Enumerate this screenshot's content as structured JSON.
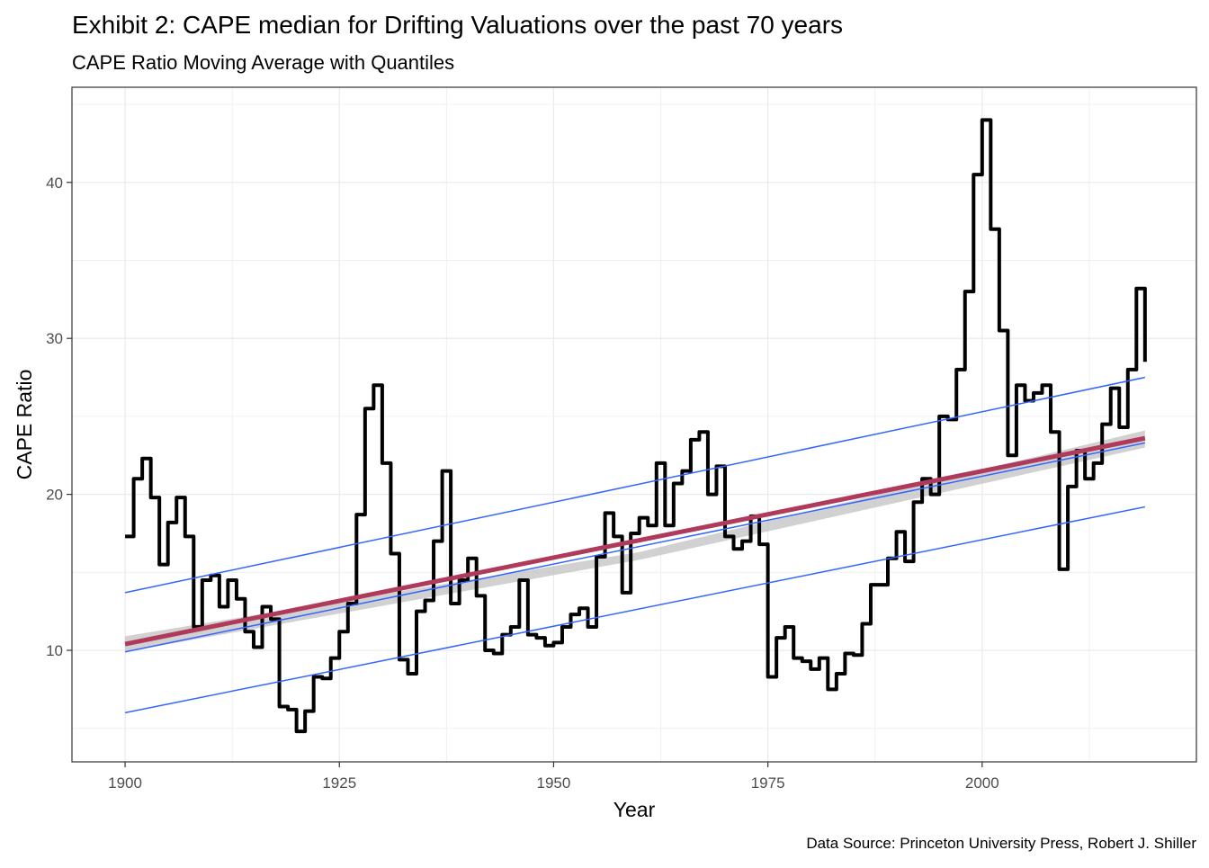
{
  "chart_data": {
    "type": "line",
    "title": "Exhibit 2:  CAPE median for Drifting Valuations over the past 70 years",
    "subtitle": "CAPE Ratio Moving Average with Quantiles",
    "x_label": "Year",
    "y_label": "CAPE Ratio",
    "caption": "Data Source: Princeton University Press, Robert J. Shiller",
    "xlim": [
      1893.8,
      2025
    ],
    "ylim": [
      2.85,
      46.1
    ],
    "xticks": [
      1900,
      1925,
      1950,
      1975,
      2000
    ],
    "yticks": [
      10,
      20,
      30,
      40
    ],
    "grid": true,
    "minor_grid": true,
    "band": {
      "color": "#bdbdbd",
      "x": [
        1900,
        1960,
        2019
      ],
      "lower": [
        9.9,
        15.8,
        23.0
      ],
      "upper": [
        10.9,
        16.3,
        24.1
      ]
    },
    "series": [
      {
        "color": "#000000",
        "step": true,
        "width": 4,
        "x": [
          1900,
          1901,
          1902,
          1903,
          1904,
          1905,
          1906,
          1907,
          1908,
          1909,
          1910,
          1911,
          1912,
          1913,
          1914,
          1915,
          1916,
          1917,
          1918,
          1919,
          1920,
          1921,
          1922,
          1923,
          1924,
          1925,
          1926,
          1927,
          1928,
          1929,
          1930,
          1931,
          1932,
          1933,
          1934,
          1935,
          1936,
          1937,
          1938,
          1939,
          1940,
          1941,
          1942,
          1943,
          1944,
          1945,
          1946,
          1947,
          1948,
          1949,
          1950,
          1951,
          1952,
          1953,
          1954,
          1955,
          1956,
          1957,
          1958,
          1959,
          1960,
          1961,
          1962,
          1963,
          1964,
          1965,
          1966,
          1967,
          1968,
          1969,
          1970,
          1971,
          1972,
          1973,
          1974,
          1975,
          1976,
          1977,
          1978,
          1979,
          1980,
          1981,
          1982,
          1983,
          1984,
          1985,
          1986,
          1987,
          1988,
          1989,
          1990,
          1991,
          1992,
          1993,
          1994,
          1995,
          1996,
          1997,
          1998,
          1999,
          2000,
          2001,
          2002,
          2003,
          2004,
          2005,
          2006,
          2007,
          2008,
          2009,
          2010,
          2011,
          2012,
          2013,
          2014,
          2015,
          2016,
          2017,
          2018,
          2019
        ],
        "values": [
          17.3,
          21,
          22.3,
          19.8,
          15.5,
          18.2,
          19.8,
          17.3,
          11.5,
          14.5,
          14.8,
          12.8,
          14.5,
          13.3,
          11.2,
          10.2,
          12.8,
          12,
          6.4,
          6.2,
          4.8,
          6.1,
          8.3,
          8.2,
          9.5,
          11.2,
          13,
          18.7,
          25.5,
          27,
          22,
          16.2,
          9.4,
          8.5,
          12.5,
          13.2,
          17,
          21.5,
          13,
          14.5,
          15.9,
          13.5,
          10,
          9.8,
          11,
          11.5,
          14.5,
          11,
          10.8,
          10.3,
          10.5,
          11.5,
          12.3,
          12.7,
          11.5,
          16,
          18.8,
          17.3,
          13.7,
          17.5,
          18.5,
          18,
          22,
          18,
          20.7,
          21.5,
          23.5,
          24,
          20,
          21.8,
          17.3,
          16.5,
          17,
          18.6,
          16.8,
          8.3,
          10.8,
          11.5,
          9.5,
          9.3,
          8.8,
          9.5,
          7.5,
          8.5,
          9.8,
          9.7,
          11.7,
          14.2,
          14.2,
          15.9,
          17.6,
          15.7,
          19.5,
          21,
          20,
          25,
          24.8,
          28,
          33,
          40.5,
          44,
          37,
          30.5,
          22.5,
          27,
          26,
          26.5,
          27,
          24,
          15.2,
          20.5,
          22.8,
          21,
          22,
          24.5,
          26.8,
          24.3,
          28,
          33.2,
          28.5
        ]
      },
      {
        "color": "#3366ff",
        "width": 1.5,
        "x": [
          1900,
          2019
        ],
        "values": [
          13.7,
          27.5
        ]
      },
      {
        "color": "#3366ff",
        "width": 1.5,
        "x": [
          1900,
          2019
        ],
        "values": [
          6.0,
          19.2
        ]
      },
      {
        "color": "#3366ff",
        "width": 1.5,
        "x": [
          1900,
          2019
        ],
        "values": [
          9.9,
          23.3
        ]
      },
      {
        "color": "#b03a5b",
        "width": 5,
        "x": [
          1900,
          2019
        ],
        "values": [
          10.4,
          23.6
        ]
      }
    ]
  }
}
